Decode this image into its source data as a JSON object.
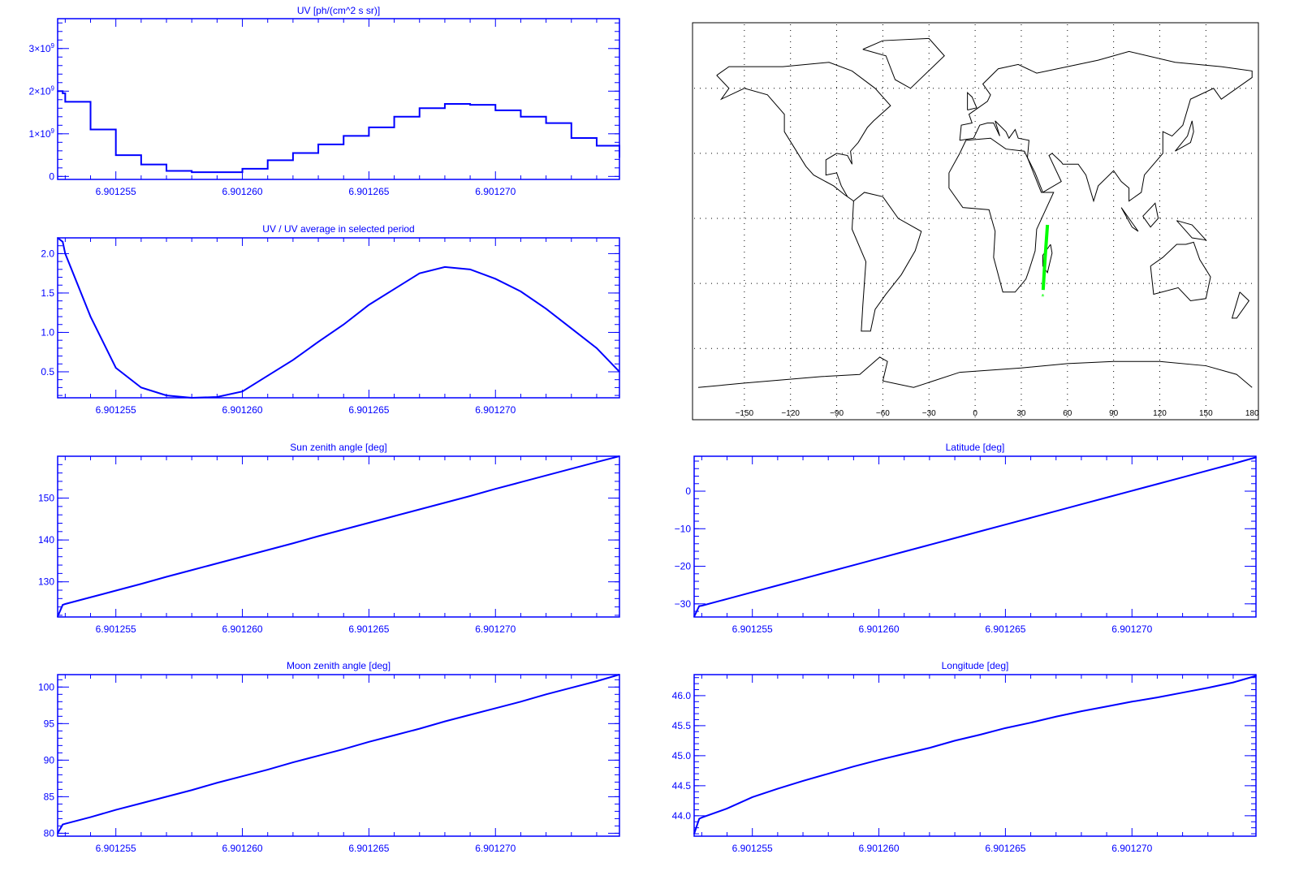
{
  "colors": {
    "axis": "#0000ff",
    "line": "#0000ff",
    "map_coast": "#000000",
    "track": "#00ff00"
  },
  "x_ticks": [
    6.901255,
    6.90126,
    6.901265,
    6.90127
  ],
  "x_tick_labels": [
    "6.901255",
    "6.901260",
    "6.901265",
    "6.901270"
  ],
  "chart_data": [
    {
      "id": "uv",
      "type": "line",
      "step": true,
      "title": "UV [ph/(cm^2 s sr)]",
      "xlim": [
        6.9012527,
        6.9012749
      ],
      "ylim": [
        -70000000,
        3700000000
      ],
      "yticks": [
        0,
        1000000000,
        2000000000,
        3000000000
      ],
      "ytick_labels": [
        {
          "base": "0",
          "exp": ""
        },
        {
          "base": "1×10",
          "exp": "9"
        },
        {
          "base": "2×10",
          "exp": "9"
        },
        {
          "base": "3×10",
          "exp": "9"
        }
      ],
      "yminor": 200000000,
      "x": [
        6.9012527,
        6.9012529,
        6.901253,
        6.901254,
        6.901255,
        6.901256,
        6.901257,
        6.901258,
        6.901259,
        6.90126,
        6.901261,
        6.901262,
        6.901263,
        6.901264,
        6.901265,
        6.901266,
        6.901267,
        6.901268,
        6.901269,
        6.90127,
        6.901271,
        6.901272,
        6.901273,
        6.901274,
        6.9012749
      ],
      "y": [
        2000000000.0,
        1950000000.0,
        1750000000.0,
        1100000000.0,
        500000000.0,
        280000000.0,
        130000000.0,
        100000000.0,
        100000000.0,
        180000000.0,
        380000000.0,
        550000000.0,
        750000000.0,
        950000000.0,
        1150000000.0,
        1400000000.0,
        1600000000.0,
        1700000000.0,
        1680000000.0,
        1550000000.0,
        1400000000.0,
        1250000000.0,
        900000000.0,
        720000000.0,
        450000000.0
      ]
    },
    {
      "id": "uv-ratio",
      "type": "line",
      "title": "UV / UV average in selected period",
      "xlim": [
        6.9012527,
        6.9012749
      ],
      "ylim": [
        0.17,
        2.2
      ],
      "yticks": [
        0.5,
        1.0,
        1.5,
        2.0
      ],
      "ytick_labels": [
        {
          "base": "0.5",
          "exp": ""
        },
        {
          "base": "1.0",
          "exp": ""
        },
        {
          "base": "1.5",
          "exp": ""
        },
        {
          "base": "2.0",
          "exp": ""
        }
      ],
      "yminor": 0.1,
      "x": [
        6.9012527,
        6.9012529,
        6.901253,
        6.901254,
        6.901255,
        6.901256,
        6.901257,
        6.901258,
        6.901259,
        6.90126,
        6.901261,
        6.901262,
        6.901263,
        6.901264,
        6.901265,
        6.901266,
        6.901267,
        6.901268,
        6.901269,
        6.90127,
        6.901271,
        6.901272,
        6.901273,
        6.901274,
        6.9012749
      ],
      "y": [
        2.2,
        2.15,
        2.0,
        1.2,
        0.55,
        0.3,
        0.2,
        0.17,
        0.18,
        0.25,
        0.45,
        0.65,
        0.88,
        1.1,
        1.35,
        1.55,
        1.75,
        1.83,
        1.8,
        1.68,
        1.52,
        1.3,
        1.05,
        0.8,
        0.5
      ]
    },
    {
      "id": "sun-zenith",
      "type": "line",
      "title": "Sun zenith angle [deg]",
      "xlim": [
        6.9012527,
        6.9012749
      ],
      "ylim": [
        121.6,
        160
      ],
      "yticks": [
        130,
        140,
        150
      ],
      "ytick_labels": [
        {
          "base": "130",
          "exp": ""
        },
        {
          "base": "140",
          "exp": ""
        },
        {
          "base": "150",
          "exp": ""
        }
      ],
      "yminor": 2,
      "x": [
        6.9012527,
        6.9012529,
        6.901253,
        6.901254,
        6.901255,
        6.901256,
        6.901257,
        6.901258,
        6.901259,
        6.90126,
        6.901261,
        6.901262,
        6.901263,
        6.901264,
        6.901265,
        6.901266,
        6.901267,
        6.901268,
        6.901269,
        6.90127,
        6.901271,
        6.901272,
        6.901273,
        6.901274,
        6.9012749
      ],
      "y": [
        121.7,
        124.5,
        124.7,
        126.3,
        127.9,
        129.5,
        131.2,
        132.8,
        134.4,
        136.0,
        137.6,
        139.2,
        140.9,
        142.5,
        144.1,
        145.7,
        147.3,
        148.9,
        150.5,
        152.2,
        153.8,
        155.4,
        157.0,
        158.6,
        160.0
      ]
    },
    {
      "id": "latitude",
      "type": "line",
      "title": "Latitude [deg]",
      "xlim": [
        6.9012527,
        6.9012749
      ],
      "ylim": [
        -33.5,
        9.3
      ],
      "yticks": [
        -30,
        -20,
        -10,
        0
      ],
      "ytick_labels": [
        {
          "base": "−30",
          "exp": ""
        },
        {
          "base": "−20",
          "exp": ""
        },
        {
          "base": "−10",
          "exp": ""
        },
        {
          "base": "0",
          "exp": ""
        }
      ],
      "yminor": 2,
      "x": [
        6.9012527,
        6.9012529,
        6.901253,
        6.901254,
        6.901255,
        6.901256,
        6.901257,
        6.901258,
        6.901259,
        6.90126,
        6.901261,
        6.901262,
        6.901263,
        6.901264,
        6.901265,
        6.901266,
        6.901267,
        6.901268,
        6.901269,
        6.90127,
        6.901271,
        6.901272,
        6.901273,
        6.901274,
        6.9012749
      ],
      "y": [
        -33.4,
        -30.6,
        -30.5,
        -28.7,
        -26.9,
        -25.1,
        -23.3,
        -21.5,
        -19.7,
        -17.9,
        -16.1,
        -14.3,
        -12.5,
        -10.7,
        -8.9,
        -7.1,
        -5.3,
        -3.5,
        -1.7,
        0.1,
        1.9,
        3.7,
        5.5,
        7.3,
        9.0
      ]
    },
    {
      "id": "moon-zenith",
      "type": "line",
      "title": "Moon zenith angle [deg]",
      "xlim": [
        6.9012527,
        6.9012749
      ],
      "ylim": [
        79.6,
        101.7
      ],
      "yticks": [
        80,
        85,
        90,
        95,
        100
      ],
      "ytick_labels": [
        {
          "base": "80",
          "exp": ""
        },
        {
          "base": "85",
          "exp": ""
        },
        {
          "base": "90",
          "exp": ""
        },
        {
          "base": "95",
          "exp": ""
        },
        {
          "base": "100",
          "exp": ""
        }
      ],
      "yminor": 1,
      "x": [
        6.9012527,
        6.9012529,
        6.901253,
        6.901254,
        6.901255,
        6.901256,
        6.901257,
        6.901258,
        6.901259,
        6.90126,
        6.901261,
        6.901262,
        6.901263,
        6.901264,
        6.901265,
        6.901266,
        6.901267,
        6.901268,
        6.901269,
        6.90127,
        6.901271,
        6.901272,
        6.901273,
        6.901274,
        6.9012749
      ],
      "y": [
        80.0,
        81.2,
        81.3,
        82.2,
        83.2,
        84.1,
        85.0,
        85.9,
        86.9,
        87.8,
        88.7,
        89.7,
        90.6,
        91.5,
        92.5,
        93.4,
        94.3,
        95.3,
        96.2,
        97.1,
        98.0,
        99.0,
        99.9,
        100.8,
        101.7
      ]
    },
    {
      "id": "longitude",
      "type": "line",
      "title": "Longitude [deg]",
      "xlim": [
        6.9012527,
        6.9012749
      ],
      "ylim": [
        43.66,
        46.35
      ],
      "yticks": [
        44.0,
        44.5,
        45.0,
        45.5,
        46.0
      ],
      "ytick_labels": [
        {
          "base": "44.0",
          "exp": ""
        },
        {
          "base": "44.5",
          "exp": ""
        },
        {
          "base": "45.0",
          "exp": ""
        },
        {
          "base": "45.5",
          "exp": ""
        },
        {
          "base": "46.0",
          "exp": ""
        }
      ],
      "yminor": 0.1,
      "x": [
        6.9012527,
        6.9012529,
        6.901253,
        6.901254,
        6.901255,
        6.901256,
        6.901257,
        6.901258,
        6.901259,
        6.90126,
        6.901261,
        6.901262,
        6.901263,
        6.901264,
        6.901265,
        6.901266,
        6.901267,
        6.901268,
        6.901269,
        6.90127,
        6.901271,
        6.901272,
        6.901273,
        6.901274,
        6.9012749
      ],
      "y": [
        43.7,
        43.95,
        43.97,
        44.12,
        44.31,
        44.45,
        44.58,
        44.7,
        44.82,
        44.93,
        45.03,
        45.13,
        45.25,
        45.35,
        45.46,
        45.55,
        45.65,
        45.74,
        45.82,
        45.9,
        45.97,
        46.05,
        46.13,
        46.22,
        46.33
      ]
    },
    {
      "id": "ground-track-map",
      "type": "map",
      "lon_ticks": [
        -150,
        -120,
        -90,
        -60,
        -30,
        0,
        30,
        60,
        90,
        120,
        150,
        180
      ],
      "lon_tick_labels": [
        "−150",
        "−120",
        "−90",
        "−60",
        "−30",
        "0",
        "30",
        "60",
        "90",
        "120",
        "150",
        "180"
      ],
      "lat_grid": [
        60,
        30,
        0,
        -30,
        -60
      ],
      "grid": true,
      "track": {
        "lon": [
          47.0,
          46.3,
          45.5,
          44.8,
          44.2
        ],
        "lat": [
          -3.0,
          -10.0,
          -18.0,
          -26.0,
          -33.0
        ],
        "end_marker": {
          "lon": 44.0,
          "lat": -36.0
        }
      }
    }
  ]
}
